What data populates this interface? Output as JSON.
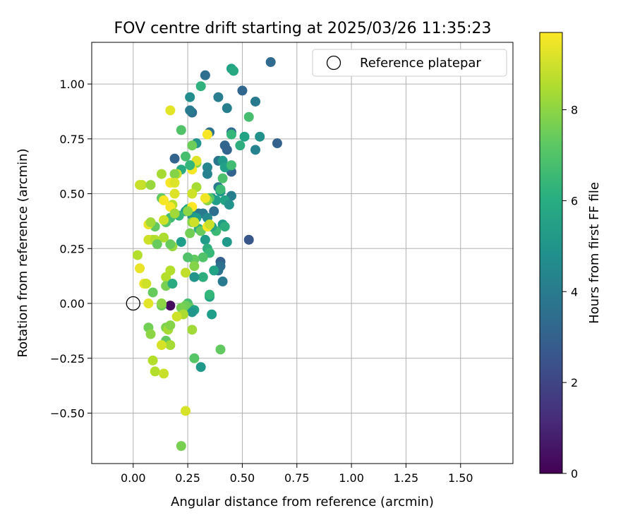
{
  "chart_data": {
    "type": "scatter",
    "title": "FOV centre drift starting at 2025/03/26 11:35:23",
    "xlabel": "Angular distance from reference (arcmin)",
    "ylabel": "Rotation from reference (arcmin)",
    "xlim": [
      -0.19,
      1.74
    ],
    "ylim": [
      -0.73,
      1.19
    ],
    "xticks": [
      0.0,
      0.25,
      0.5,
      0.75,
      1.0,
      1.25,
      1.5
    ],
    "xtick_labels": [
      "0.00",
      "0.25",
      "0.50",
      "0.75",
      "1.00",
      "1.25",
      "1.50"
    ],
    "yticks": [
      -0.5,
      -0.25,
      0.0,
      0.25,
      0.5,
      0.75,
      1.0
    ],
    "ytick_labels": [
      "−0.50",
      "−0.25",
      "0.00",
      "0.25",
      "0.50",
      "0.75",
      "1.00"
    ],
    "grid": true,
    "legend": {
      "position": "top-right",
      "entries": [
        {
          "label": "Reference platepar",
          "marker": "open-circle"
        }
      ]
    },
    "reference_point": {
      "x": 0.0,
      "y": 0.0
    },
    "colorbar": {
      "label": "Hours from first FF file",
      "range": [
        0,
        9.7
      ],
      "ticks": [
        0,
        2,
        4,
        6,
        8
      ],
      "tick_labels": [
        "0",
        "2",
        "4",
        "6",
        "8"
      ],
      "colormap": "viridis"
    },
    "points": [
      [
        0.17,
        -0.01,
        0.3
      ],
      [
        0.63,
        1.1,
        3.3
      ],
      [
        0.33,
        1.04,
        3.5
      ],
      [
        0.5,
        0.97,
        3.2
      ],
      [
        0.56,
        0.92,
        4.0
      ],
      [
        0.39,
        0.94,
        4.1
      ],
      [
        0.43,
        0.89,
        4.2
      ],
      [
        0.27,
        0.87,
        3.6
      ],
      [
        0.26,
        0.88,
        4.0
      ],
      [
        0.26,
        0.94,
        4.7
      ],
      [
        0.45,
        1.07,
        5.6
      ],
      [
        0.46,
        1.06,
        5.8
      ],
      [
        0.31,
        0.99,
        6.2
      ],
      [
        0.53,
        0.85,
        6.8
      ],
      [
        0.66,
        0.73,
        3.0
      ],
      [
        0.58,
        0.76,
        4.9
      ],
      [
        0.56,
        0.7,
        4.3
      ],
      [
        0.45,
        0.78,
        3.4
      ],
      [
        0.42,
        0.72,
        3.2
      ],
      [
        0.43,
        0.7,
        3.1
      ],
      [
        0.35,
        0.78,
        3.6
      ],
      [
        0.51,
        0.76,
        5.6
      ],
      [
        0.49,
        0.72,
        6.1
      ],
      [
        0.45,
        0.77,
        6.4
      ],
      [
        0.19,
        0.66,
        3.1
      ],
      [
        0.29,
        0.73,
        5.0
      ],
      [
        0.22,
        0.79,
        7.0
      ],
      [
        0.24,
        0.67,
        6.8
      ],
      [
        0.27,
        0.72,
        7.5
      ],
      [
        0.34,
        0.77,
        9.6
      ],
      [
        0.17,
        0.88,
        9.3
      ],
      [
        0.45,
        0.6,
        3.1
      ],
      [
        0.44,
        0.62,
        3.6
      ],
      [
        0.39,
        0.65,
        3.8
      ],
      [
        0.34,
        0.62,
        4.5
      ],
      [
        0.34,
        0.59,
        4.3
      ],
      [
        0.41,
        0.65,
        5.2
      ],
      [
        0.42,
        0.62,
        5.5
      ],
      [
        0.45,
        0.63,
        6.7
      ],
      [
        0.29,
        0.64,
        7.8
      ],
      [
        0.29,
        0.65,
        9.2
      ],
      [
        0.27,
        0.61,
        9.6
      ],
      [
        0.22,
        0.61,
        5.9
      ],
      [
        0.26,
        0.63,
        6.4
      ],
      [
        0.2,
        0.59,
        9.0
      ],
      [
        0.19,
        0.59,
        7.9
      ],
      [
        0.13,
        0.59,
        8.4
      ],
      [
        0.17,
        0.55,
        9.6
      ],
      [
        0.19,
        0.55,
        9.2
      ],
      [
        0.45,
        0.49,
        4.2
      ],
      [
        0.39,
        0.53,
        4.0
      ],
      [
        0.4,
        0.51,
        5.2
      ],
      [
        0.4,
        0.52,
        6.6
      ],
      [
        0.41,
        0.57,
        6.9
      ],
      [
        0.36,
        0.48,
        5.2
      ],
      [
        0.38,
        0.47,
        5.4
      ],
      [
        0.42,
        0.47,
        5.6
      ],
      [
        0.44,
        0.45,
        5.0
      ],
      [
        0.34,
        0.47,
        6.0
      ],
      [
        0.35,
        0.48,
        7.1
      ],
      [
        0.34,
        0.47,
        8.0
      ],
      [
        0.33,
        0.48,
        9.5
      ],
      [
        0.29,
        0.53,
        8.4
      ],
      [
        0.27,
        0.5,
        9.0
      ],
      [
        0.13,
        0.48,
        7.3
      ],
      [
        0.14,
        0.47,
        9.6
      ],
      [
        0.04,
        0.54,
        8.8
      ],
      [
        0.03,
        0.54,
        8.9
      ],
      [
        0.08,
        0.54,
        8.2
      ],
      [
        0.19,
        0.5,
        9.2
      ],
      [
        0.37,
        0.42,
        3.5
      ],
      [
        0.3,
        0.41,
        3.7
      ],
      [
        0.32,
        0.41,
        4.0
      ],
      [
        0.34,
        0.39,
        4.6
      ],
      [
        0.27,
        0.4,
        4.9
      ],
      [
        0.29,
        0.39,
        5.4
      ],
      [
        0.24,
        0.42,
        5.1
      ],
      [
        0.25,
        0.43,
        5.9
      ],
      [
        0.21,
        0.4,
        6.3
      ],
      [
        0.17,
        0.39,
        6.7
      ],
      [
        0.15,
        0.37,
        7.1
      ],
      [
        0.18,
        0.45,
        8.6
      ],
      [
        0.17,
        0.44,
        9.6
      ],
      [
        0.19,
        0.41,
        8.3
      ],
      [
        0.27,
        0.44,
        9.7
      ],
      [
        0.25,
        0.42,
        8.0
      ],
      [
        0.14,
        0.38,
        9.0
      ],
      [
        0.1,
        0.35,
        7.3
      ],
      [
        0.07,
        0.36,
        9.4
      ],
      [
        0.08,
        0.37,
        8.3
      ],
      [
        0.41,
        0.36,
        5.3
      ],
      [
        0.42,
        0.35,
        6.1
      ],
      [
        0.38,
        0.33,
        6.6
      ],
      [
        0.36,
        0.35,
        5.7
      ],
      [
        0.3,
        0.34,
        6.1
      ],
      [
        0.31,
        0.33,
        7.4
      ],
      [
        0.27,
        0.37,
        7.9
      ],
      [
        0.28,
        0.37,
        9.0
      ],
      [
        0.26,
        0.32,
        7.6
      ],
      [
        0.34,
        0.35,
        9.6
      ],
      [
        0.35,
        0.36,
        8.9
      ],
      [
        0.33,
        0.29,
        5.3
      ],
      [
        0.22,
        0.28,
        5.4
      ],
      [
        0.18,
        0.26,
        8.2
      ],
      [
        0.17,
        0.27,
        7.4
      ],
      [
        0.14,
        0.3,
        8.5
      ],
      [
        0.09,
        0.29,
        8.3
      ],
      [
        0.07,
        0.29,
        9.0
      ],
      [
        0.1,
        0.29,
        8.6
      ],
      [
        0.11,
        0.27,
        7.4
      ],
      [
        0.43,
        0.28,
        5.2
      ],
      [
        0.4,
        0.19,
        3.0
      ],
      [
        0.4,
        0.17,
        3.6
      ],
      [
        0.39,
        0.15,
        3.7
      ],
      [
        0.37,
        0.15,
        5.6
      ],
      [
        0.34,
        0.25,
        6.1
      ],
      [
        0.35,
        0.23,
        6.5
      ],
      [
        0.32,
        0.21,
        7.0
      ],
      [
        0.28,
        0.2,
        7.3
      ],
      [
        0.28,
        0.17,
        7.9
      ],
      [
        0.25,
        0.21,
        7.0
      ],
      [
        0.24,
        0.14,
        8.8
      ],
      [
        0.32,
        0.12,
        6.1
      ],
      [
        0.28,
        0.12,
        5.0
      ],
      [
        0.41,
        0.1,
        4.0
      ],
      [
        0.53,
        0.29,
        2.6
      ],
      [
        0.02,
        0.22,
        8.6
      ],
      [
        0.03,
        0.16,
        9.4
      ],
      [
        0.17,
        0.15,
        8.6
      ],
      [
        0.15,
        0.12,
        8.6
      ],
      [
        0.15,
        0.08,
        7.7
      ],
      [
        0.18,
        0.09,
        5.9
      ],
      [
        0.09,
        0.05,
        7.4
      ],
      [
        0.05,
        0.09,
        9.4
      ],
      [
        0.06,
        0.09,
        9.0
      ],
      [
        0.35,
        0.03,
        5.6
      ],
      [
        0.35,
        0.04,
        6.4
      ],
      [
        0.25,
        0.0,
        6.8
      ],
      [
        0.26,
        -0.02,
        7.3
      ],
      [
        0.24,
        -0.01,
        7.5
      ],
      [
        0.22,
        -0.02,
        7.7
      ],
      [
        0.28,
        -0.03,
        5.6
      ],
      [
        0.27,
        -0.04,
        5.1
      ],
      [
        0.36,
        -0.05,
        5.4
      ],
      [
        0.13,
        -0.01,
        7.5
      ],
      [
        0.13,
        0.0,
        8.0
      ],
      [
        0.07,
        0.0,
        9.3
      ],
      [
        0.23,
        -0.05,
        8.5
      ],
      [
        0.2,
        -0.06,
        9.0
      ],
      [
        0.07,
        -0.11,
        7.6
      ],
      [
        0.08,
        -0.14,
        8.0
      ],
      [
        0.15,
        -0.11,
        7.8
      ],
      [
        0.16,
        -0.12,
        8.4
      ],
      [
        0.17,
        -0.1,
        7.9
      ],
      [
        0.15,
        -0.17,
        7.3
      ],
      [
        0.17,
        -0.19,
        8.4
      ],
      [
        0.13,
        -0.19,
        9.1
      ],
      [
        0.27,
        -0.12,
        8.3
      ],
      [
        0.4,
        -0.21,
        7.3
      ],
      [
        0.28,
        -0.25,
        7.1
      ],
      [
        0.31,
        -0.29,
        5.2
      ],
      [
        0.09,
        -0.26,
        8.6
      ],
      [
        0.1,
        -0.31,
        8.6
      ],
      [
        0.14,
        -0.32,
        8.9
      ],
      [
        0.24,
        -0.49,
        9.1
      ],
      [
        0.22,
        -0.65,
        7.7
      ]
    ]
  }
}
